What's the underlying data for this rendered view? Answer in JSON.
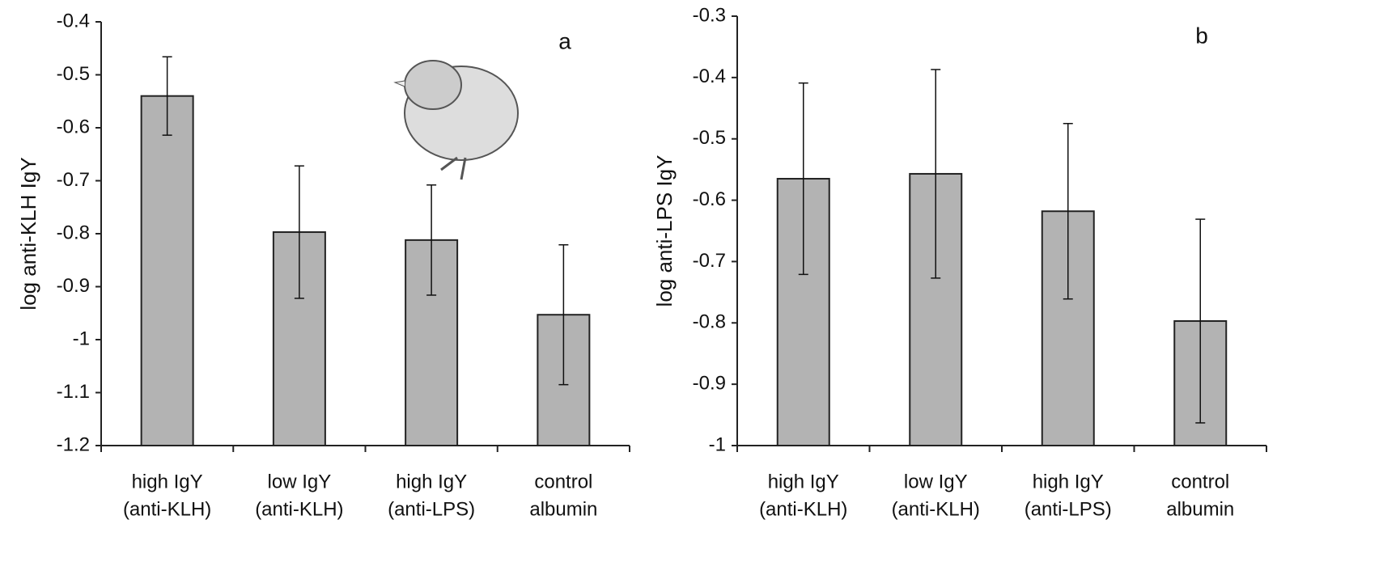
{
  "chart_data": [
    {
      "type": "bar",
      "annotation": "a",
      "y_label": "log anti-KLH IgY",
      "categories": [
        [
          "high IgY",
          "(anti-KLH)"
        ],
        [
          "low IgY",
          "(anti-KLH)"
        ],
        [
          "high IgY",
          "(anti-LPS)"
        ],
        [
          "control",
          "albumin"
        ]
      ],
      "values": [
        -0.54,
        -0.797,
        -0.812,
        -0.953
      ],
      "errors": [
        0.074,
        0.125,
        0.104,
        0.132
      ],
      "color": "#b3b3b3",
      "ylim": [
        -1.2,
        -0.4
      ],
      "yticks": [
        -1.2,
        -1.1,
        -1,
        -0.9,
        -0.8,
        -0.7,
        -0.6,
        -0.5,
        -0.4
      ]
    },
    {
      "type": "bar",
      "annotation": "b",
      "y_label": "log anti-LPS IgY",
      "categories": [
        [
          "high IgY",
          "(anti-KLH)"
        ],
        [
          "low IgY",
          "(anti-KLH)"
        ],
        [
          "high IgY",
          "(anti-LPS)"
        ],
        [
          "control",
          "albumin"
        ]
      ],
      "values": [
        -0.565,
        -0.557,
        -0.618,
        -0.797
      ],
      "errors": [
        0.156,
        0.17,
        0.143,
        0.166
      ],
      "color": "#b3b3b3",
      "ylim": [
        -1,
        -0.3
      ],
      "yticks": [
        -1,
        -0.9,
        -0.8,
        -0.7,
        -0.6,
        -0.5,
        -0.4,
        -0.3
      ]
    }
  ]
}
